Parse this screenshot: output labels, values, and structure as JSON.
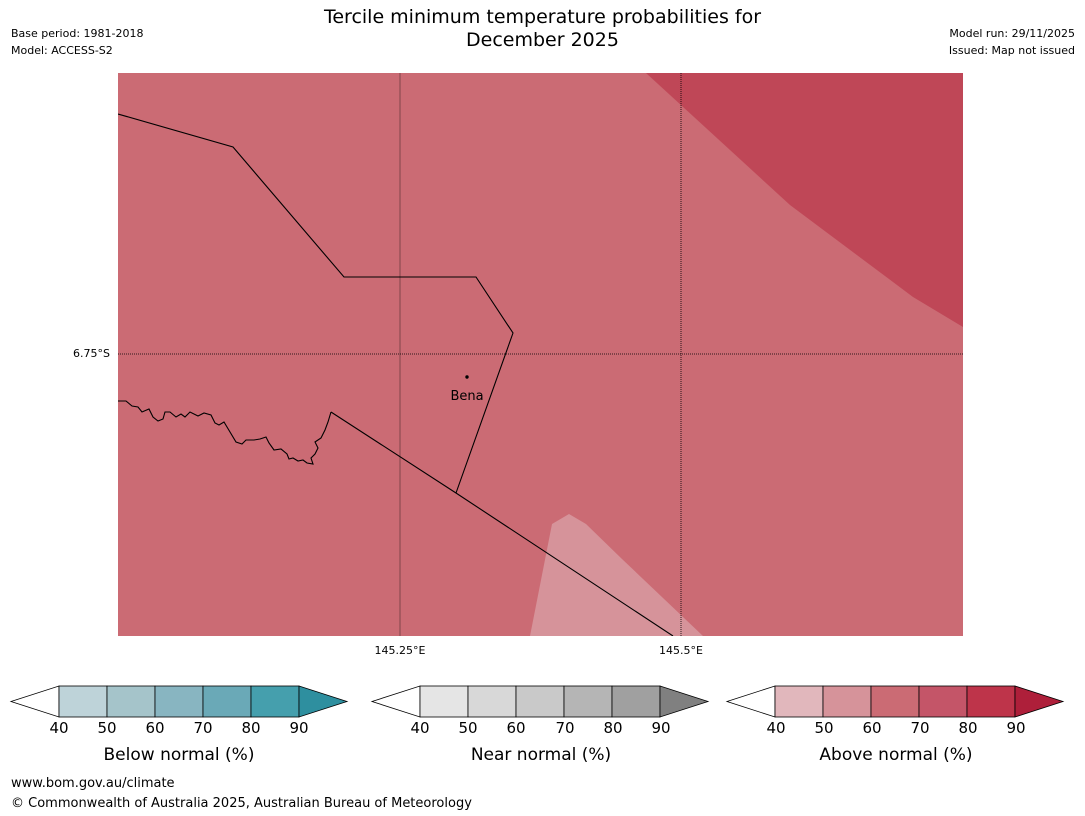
{
  "header": {
    "title_line1": "Tercile minimum temperature probabilities for",
    "title_line2": "December 2025",
    "base_period": "Base period: 1981-2018",
    "model": "Model: ACCESS-S2",
    "model_run": "Model run: 29/11/2025",
    "issued": "Issued: Map not issued"
  },
  "map": {
    "lat_label": "6.75°S",
    "lon_labels": [
      "145.25°E",
      "145.5°E"
    ],
    "place_label": "Bena",
    "fill_colors": {
      "base": "#cb6b74",
      "high": "#bf4757",
      "low": "#d6939a"
    }
  },
  "legends": [
    {
      "label": "Below normal (%)",
      "colors": [
        "#bed3d9",
        "#a5c4ca",
        "#88b5c1",
        "#6aa9b7",
        "#459fad",
        "#2e8f9f"
      ],
      "ticks": [
        "40",
        "50",
        "60",
        "70",
        "80",
        "90"
      ]
    },
    {
      "label": "Near normal (%)",
      "colors": [
        "#e5e5e5",
        "#d8d8d8",
        "#c9c9c9",
        "#b5b5b5",
        "#a0a0a0",
        "#808080"
      ],
      "ticks": [
        "40",
        "50",
        "60",
        "70",
        "80",
        "90"
      ]
    },
    {
      "label": "Above normal (%)",
      "colors": [
        "#e1b7bc",
        "#d6939a",
        "#cb6b74",
        "#c45568",
        "#be344a",
        "#ae1f3a"
      ],
      "ticks": [
        "40",
        "50",
        "60",
        "70",
        "80",
        "90"
      ]
    }
  ],
  "footer": {
    "url": "www.bom.gov.au/climate",
    "copyright": "© Commonwealth of Australia 2025, Australian Bureau of Meteorology"
  }
}
